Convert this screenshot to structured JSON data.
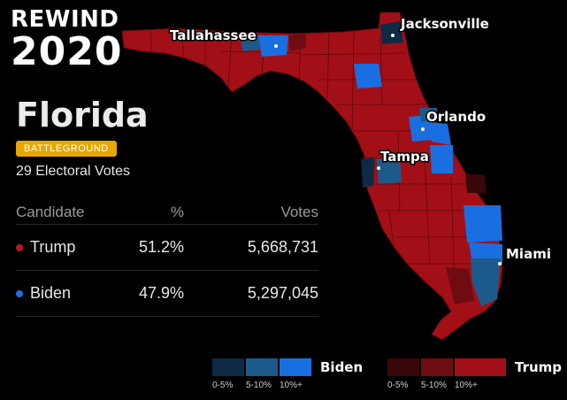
{
  "brand": {
    "line1": "REWIND",
    "line2": "2020"
  },
  "state": {
    "name": "Florida",
    "badge": "BATTLEGROUND",
    "electoral_votes": "29 Electoral Votes"
  },
  "results": {
    "headers": {
      "candidate": "Candidate",
      "pct": "%",
      "votes": "Votes"
    },
    "rows": [
      {
        "name": "Trump",
        "pct": "51.2%",
        "votes": "5,668,731",
        "color": "#c0161c"
      },
      {
        "name": "Biden",
        "pct": "47.9%",
        "votes": "5,297,045",
        "color": "#1a6fe0"
      }
    ]
  },
  "map": {
    "cities": [
      {
        "name": "Tallahassee"
      },
      {
        "name": "Jacksonville"
      },
      {
        "name": "Orlando"
      },
      {
        "name": "Tampa"
      },
      {
        "name": "Miami"
      }
    ],
    "colors": {
      "trump_base": "#a30f17",
      "biden_base": "#1a6fe0",
      "border": "#5a0a0e"
    }
  },
  "legend": {
    "biden": {
      "label": "Biden",
      "colors": [
        "#0e2a44",
        "#1d5a8c",
        "#1a6fe0"
      ],
      "ticks": [
        "0-5%",
        "5-10%",
        "10%+"
      ]
    },
    "trump": {
      "label": "Trump",
      "colors": [
        "#3a0709",
        "#6e0c12",
        "#a30f17"
      ],
      "ticks": [
        "0-5%",
        "5-10%",
        "10%+"
      ]
    }
  }
}
